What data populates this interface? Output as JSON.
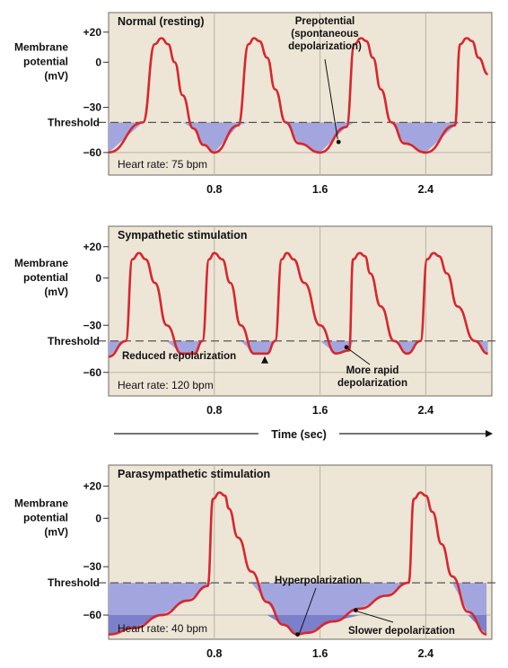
{
  "colors": {
    "panel_bg": "#ede6d6",
    "fill": "#a3a6de",
    "fill_dark": "#7c7fc9",
    "trace": "#d8262e",
    "threshold": "#555555",
    "grid": "#b9b3a3",
    "text": "#111111"
  },
  "chart_data": [
    {
      "type": "line",
      "title": "Normal (resting)",
      "ylabel": "Membrane potential (mV)",
      "ytick_labels": [
        "+20",
        "0",
        "−30",
        "−60"
      ],
      "yticks": [
        20,
        0,
        -30,
        -60
      ],
      "xticks": [
        0.8,
        1.6,
        2.4
      ],
      "xtick_labels": [
        "0.8",
        "1.6",
        "2.4"
      ],
      "xlim": [
        0,
        2.9
      ],
      "ylim": [
        -75,
        33
      ],
      "threshold_label": "Threshold",
      "threshold_value": -40,
      "rate_label": "Heart rate: 75 bpm",
      "x_axis_arrow_label": "",
      "series": [
        {
          "x": [
            0,
            0.26,
            0.35,
            0.4,
            0.45,
            0.5,
            0.56,
            0.64,
            0.72,
            0.8,
            0.98,
            1.06,
            1.1,
            1.14,
            1.2,
            1.26,
            1.34,
            1.44,
            1.6,
            1.8,
            1.86,
            1.91,
            1.95,
            2.0,
            2.06,
            2.14,
            2.24,
            2.4,
            2.62,
            2.66,
            2.71,
            2.75,
            2.8,
            2.87
          ],
          "y": [
            -60,
            -40,
            12,
            16,
            12,
            0,
            -22,
            -44,
            -55,
            -60,
            -42,
            12,
            16,
            14,
            3,
            -18,
            -40,
            -54,
            -60,
            -43,
            12,
            16,
            14,
            3,
            -18,
            -40,
            -54,
            -60,
            -42,
            12,
            16,
            14,
            3,
            -8
          ]
        }
      ],
      "annotations": [
        {
          "text": [
            "Prepotential",
            "(spontaneous",
            "depolarization)"
          ],
          "data_x": 1.74,
          "data_y": -53
        }
      ]
    },
    {
      "type": "line",
      "title": "Sympathetic stimulation",
      "ylabel": "Membrane potential (mV)",
      "ytick_labels": [
        "+20",
        "0",
        "−30",
        "−60"
      ],
      "yticks": [
        20,
        0,
        -30,
        -60
      ],
      "xticks": [
        0.8,
        1.6,
        2.4
      ],
      "xtick_labels": [
        "0.8",
        "1.6",
        "2.4"
      ],
      "xlim": [
        0,
        2.9
      ],
      "ylim": [
        -75,
        33
      ],
      "threshold_label": "Threshold",
      "threshold_value": -40,
      "rate_label": "Heart rate: 120 bpm",
      "x_axis_arrow_label": "Time (sec)",
      "series": [
        {
          "x": [
            0,
            0.13,
            0.18,
            0.23,
            0.28,
            0.35,
            0.44,
            0.55,
            0.65,
            0.71,
            0.76,
            0.8,
            0.86,
            0.92,
            1.0,
            1.1,
            1.2,
            1.26,
            1.31,
            1.35,
            1.4,
            1.48,
            1.6,
            1.72,
            1.82,
            1.85,
            1.9,
            1.94,
            1.98,
            2.06,
            2.16,
            2.26,
            2.36,
            2.41,
            2.46,
            2.5,
            2.56,
            2.64,
            2.77,
            2.87
          ],
          "y": [
            -50,
            -40,
            12,
            16,
            12,
            -3,
            -30,
            -48,
            -48,
            -40,
            12,
            16,
            12,
            -3,
            -30,
            -48,
            -48,
            -40,
            12,
            16,
            12,
            -3,
            -30,
            -48,
            -46,
            12,
            16,
            14,
            3,
            -18,
            -40,
            -48,
            -40,
            12,
            16,
            14,
            3,
            -18,
            -40,
            -48
          ]
        }
      ],
      "annotations": [
        {
          "text": [
            "Reduced repolarization"
          ],
          "data_x": 1.1,
          "data_y": -48
        },
        {
          "text": [
            "More rapid",
            "depolarization"
          ],
          "data_x": 1.8,
          "data_y": -44
        }
      ]
    },
    {
      "type": "line",
      "title": "Parasympathetic stimulation",
      "ylabel": "Membrane potential (mV)",
      "ytick_labels": [
        "+20",
        "0",
        "−30",
        "−60"
      ],
      "yticks": [
        20,
        0,
        -30,
        -60
      ],
      "xticks": [
        0.8,
        1.6,
        2.4
      ],
      "xtick_labels": [
        "0.8",
        "1.6",
        "2.4"
      ],
      "xlim": [
        0,
        2.9
      ],
      "ylim": [
        -75,
        33
      ],
      "threshold_label": "Threshold",
      "threshold_value": -40,
      "rate_label": "Heart rate: 40 bpm",
      "x_axis_arrow_label": "",
      "series": [
        {
          "x": [
            0,
            0.2,
            0.4,
            0.6,
            0.75,
            0.79,
            0.84,
            0.88,
            0.91,
            0.98,
            1.08,
            1.2,
            1.32,
            1.43,
            1.5,
            1.7,
            1.9,
            2.1,
            2.27,
            2.31,
            2.36,
            2.4,
            2.45,
            2.52,
            2.6,
            2.72,
            2.86
          ],
          "y": [
            -72,
            -68,
            -60,
            -51,
            -42,
            12,
            16,
            14,
            6,
            -12,
            -33,
            -52,
            -66,
            -72,
            -71,
            -64,
            -56,
            -48,
            -40,
            12,
            16,
            14,
            4,
            -16,
            -36,
            -58,
            -72
          ]
        }
      ],
      "annotations": [
        {
          "text": [
            "Hyperpolarization"
          ],
          "data_x": 1.43,
          "data_y": -72
        },
        {
          "text": [
            "Slower depolarization"
          ],
          "data_x": 1.87,
          "data_y": -57
        }
      ]
    }
  ]
}
